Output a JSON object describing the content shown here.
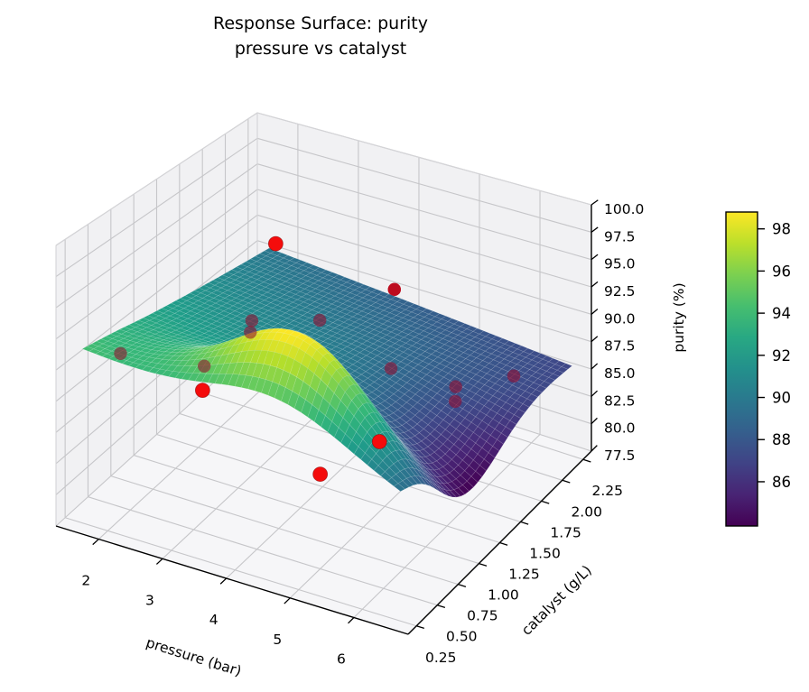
{
  "title": {
    "line1": "Response Surface: purity",
    "line2": "pressure vs catalyst"
  },
  "axes": {
    "x": {
      "label": "pressure (bar)",
      "ticks": [
        "2",
        "3",
        "4",
        "5",
        "6"
      ],
      "tick_values": [
        2,
        3,
        4,
        5,
        6
      ],
      "range": [
        1.33,
        6.85
      ]
    },
    "y": {
      "label": "catalyst (g/L)",
      "ticks": [
        "0.25",
        "0.50",
        "0.75",
        "1.00",
        "1.25",
        "1.50",
        "1.75",
        "2.00",
        "2.25"
      ],
      "tick_values": [
        0.25,
        0.5,
        0.75,
        1.0,
        1.25,
        1.5,
        1.75,
        2.0,
        2.25
      ],
      "range": [
        0.15,
        2.35
      ]
    },
    "z": {
      "label": "purity (%)",
      "ticks": [
        "77.5",
        "80.0",
        "82.5",
        "85.0",
        "87.5",
        "90.0",
        "92.5",
        "95.0",
        "97.5",
        "100.0"
      ],
      "tick_values": [
        77.5,
        80.0,
        82.5,
        85.0,
        87.5,
        90.0,
        92.5,
        95.0,
        97.5,
        100.0
      ],
      "range": [
        77.5,
        100.0
      ]
    },
    "grid": true
  },
  "colorbar": {
    "ticks": [
      "86",
      "88",
      "90",
      "92",
      "94",
      "96",
      "98"
    ],
    "tick_values": [
      86,
      88,
      90,
      92,
      94,
      96,
      98
    ],
    "vmin": 83.9,
    "vmax": 98.8,
    "colormap": "viridis"
  },
  "chart_data": {
    "type": "surface3d_with_scatter",
    "title": "Response Surface: purity — pressure vs catalyst",
    "xlabel": "pressure (bar)",
    "ylabel": "catalyst (g/L)",
    "zlabel": "purity (%)",
    "surface": {
      "colormap": "viridis",
      "x_domain": [
        1.6,
        6.6
      ],
      "y_domain": [
        0.25,
        2.3
      ],
      "grid_nx": 48,
      "grid_ny": 40,
      "model": "fitted quadratic-like response surface: flat ~91 at low pressure, yellow ridge ~95-98 near catalyst 0.55 at mid pressure, purple valley ~83 near catalyst 1.0 at high pressure, back edge ~85-88",
      "params": {
        "base0": 91.5,
        "base_slope": -3.5,
        "tilt": -1.9,
        "tilt_damp": 0.3,
        "y_front": 0.25,
        "ridge_amp": 6.8,
        "ridge_t": 0.62,
        "ridge_t_var": 0.09,
        "ridge_y": 0.55,
        "ridge_y_var": 0.095,
        "valley_amp": 4.5,
        "valley_t0": 0.45,
        "valley_pow": 1.6,
        "valley_norm": 0.383,
        "valley_y": 1.0,
        "valley_y_var": 0.405
      }
    },
    "scatter": {
      "marker_color": "#ff0000",
      "occluded_note": "points marked occluded=true render dark maroon behind/through the surface",
      "points": [
        {
          "pressure": 3.6,
          "catalyst": 1.0,
          "purity": 99.0,
          "occluded": false
        },
        {
          "pressure": 3.0,
          "catalyst": 0.6,
          "purity": 88.2,
          "occluded": false
        },
        {
          "pressure": 5.6,
          "catalyst": 0.75,
          "purity": 87.0,
          "occluded": false
        },
        {
          "pressure": 5.0,
          "catalyst": 0.5,
          "purity": 85.0,
          "occluded": false
        },
        {
          "pressure": 1.7,
          "catalyst": 0.6,
          "purity": 89.3,
          "occluded": true
        },
        {
          "pressure": 2.6,
          "catalyst": 0.9,
          "purity": 87.8,
          "occluded": true
        },
        {
          "pressure": 2.5,
          "catalyst": 1.5,
          "purity": 87.8,
          "occluded": true
        },
        {
          "pressure": 2.52,
          "catalyst": 1.47,
          "purity": 87.0,
          "occluded": true
        },
        {
          "pressure": 3.6,
          "catalyst": 1.5,
          "purity": 89.6,
          "occluded": true
        },
        {
          "pressure": 4.1,
          "catalyst": 2.0,
          "purity": 90.0,
          "occluded": true
        },
        {
          "pressure": 5.1,
          "catalyst": 1.25,
          "purity": 89.3,
          "occluded": true
        },
        {
          "pressure": 5.8,
          "catalyst": 1.5,
          "purity": 87.3,
          "occluded": true
        },
        {
          "pressure": 5.82,
          "catalyst": 1.48,
          "purity": 86.2,
          "occluded": true
        },
        {
          "pressure": 6.4,
          "catalyst": 1.75,
          "purity": 87.6,
          "occluded": true
        }
      ]
    }
  },
  "colors": {
    "scatter_red": "#f40c0c",
    "scatter_occluded": "rgba(150,8,42,0.55)",
    "pane_wall": "#f1f1f3",
    "pane_floor": "#f6f6f8",
    "grid_line": "#c6c6c9",
    "spine": "#000000",
    "mesh_line": "rgba(255,255,255,0.18)"
  }
}
